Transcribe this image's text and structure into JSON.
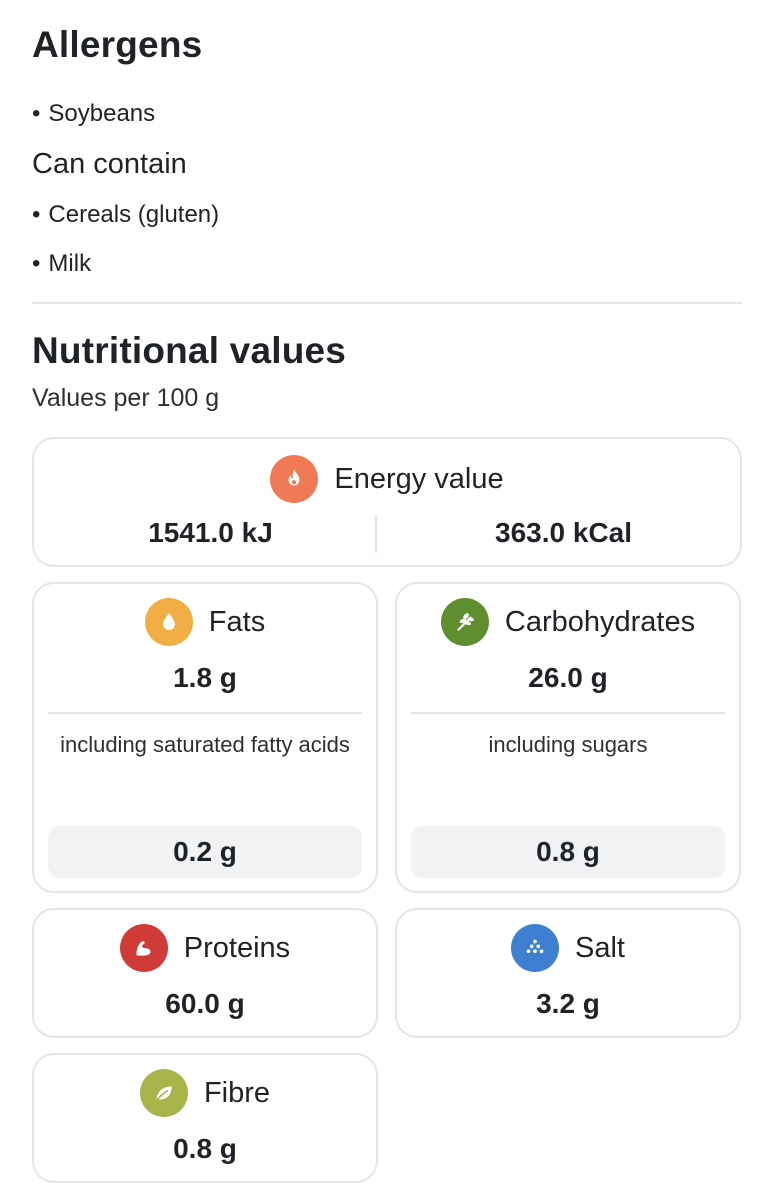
{
  "allergens": {
    "title": "Allergens",
    "items": [
      "Soybeans"
    ],
    "can_contain_title": "Can contain",
    "can_contain_items": [
      "Cereals (gluten)",
      "Milk"
    ],
    "bullet": "•"
  },
  "nutrition": {
    "title": "Nutritional values",
    "subtitle": "Values per 100 g",
    "energy": {
      "label": "Energy value",
      "kj": "1541.0 kJ",
      "kcal": "363.0 kCal",
      "icon": "flame-icon",
      "color": "#ef7a55"
    },
    "fats": {
      "label": "Fats",
      "value": "1.8 g",
      "sub_label": "including saturated fatty acids",
      "sub_value": "0.2 g",
      "icon": "drop-icon",
      "color": "#f0ae45"
    },
    "carbohydrates": {
      "label": "Carbohydrates",
      "value": "26.0 g",
      "sub_label": "including sugars",
      "sub_value": "0.8 g",
      "icon": "wheat-icon",
      "color": "#5e8e2e"
    },
    "proteins": {
      "label": "Proteins",
      "value": "60.0 g",
      "icon": "muscle-icon",
      "color": "#cf3c37"
    },
    "salt": {
      "label": "Salt",
      "value": "3.2 g",
      "icon": "salt-icon",
      "color": "#3f7fd1"
    },
    "fibre": {
      "label": "Fibre",
      "value": "0.8 g",
      "icon": "leaf-icon",
      "color": "#a8b54a"
    }
  }
}
